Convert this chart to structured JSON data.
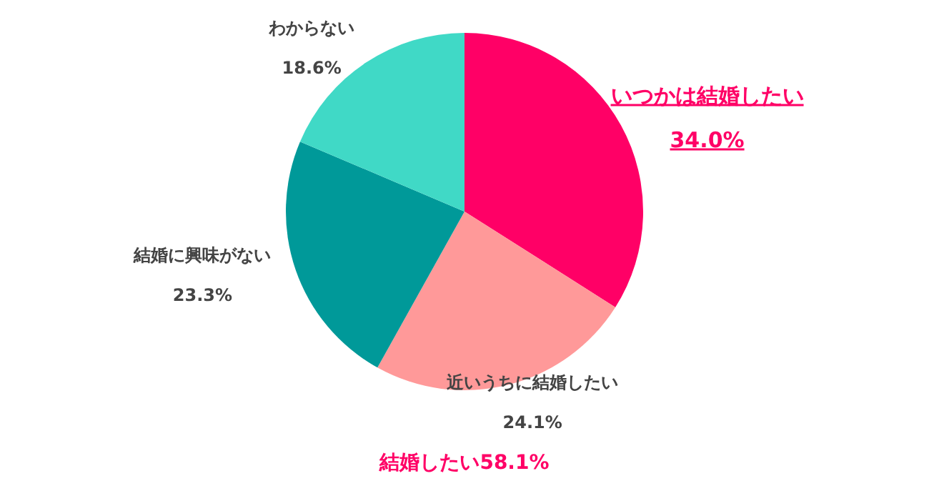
{
  "chart_data": {
    "type": "pie",
    "categories": [
      "いつかは結婚したい",
      "近いうちに結婚したい",
      "結婚に興味がない",
      "わからない"
    ],
    "values": [
      34.0,
      24.1,
      23.3,
      18.6
    ],
    "colors": [
      "#ff0066",
      "#ff9999",
      "#009999",
      "#40d9c6"
    ],
    "value_labels": [
      "34.0%",
      "24.1%",
      "23.3%",
      "18.6%"
    ],
    "annotations": [
      "結婚したい58.1%"
    ]
  }
}
